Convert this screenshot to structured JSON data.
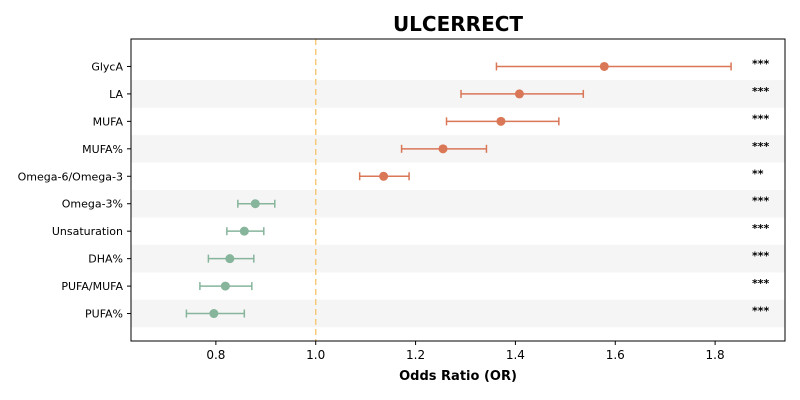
{
  "chart_data": {
    "type": "forest",
    "title": "ULCERRECT",
    "xlabel": "Odds Ratio (OR)",
    "xlim": [
      0.63,
      1.94
    ],
    "xticks": [
      0.8,
      1.0,
      1.2,
      1.4,
      1.6,
      1.8
    ],
    "xtick_labels": [
      "0.8",
      "1.0",
      "1.2",
      "1.4",
      "1.6",
      "1.8"
    ],
    "reference_line": 1.0,
    "categories": [
      "GlycA",
      "LA",
      "MUFA",
      "MUFA%",
      "Omega-6/Omega-3",
      "Omega-3%",
      "Unsaturation",
      "DHA%",
      "PUFA/MUFA",
      "PUFA%"
    ],
    "or": [
      1.578,
      1.408,
      1.371,
      1.255,
      1.136,
      0.879,
      0.857,
      0.828,
      0.819,
      0.796
    ],
    "ci_low": [
      1.362,
      1.291,
      1.262,
      1.172,
      1.088,
      0.844,
      0.822,
      0.785,
      0.768,
      0.741
    ],
    "ci_high": [
      1.832,
      1.536,
      1.487,
      1.342,
      1.187,
      0.918,
      0.896,
      0.876,
      0.872,
      0.857
    ],
    "significance": [
      "***",
      "***",
      "***",
      "***",
      "**",
      "***",
      "***",
      "***",
      "***",
      "***"
    ],
    "colors": {
      "risk": "#d97757",
      "protective": "#86b59c",
      "reference": "#f5c97a",
      "band": "#f5f5f5"
    }
  }
}
